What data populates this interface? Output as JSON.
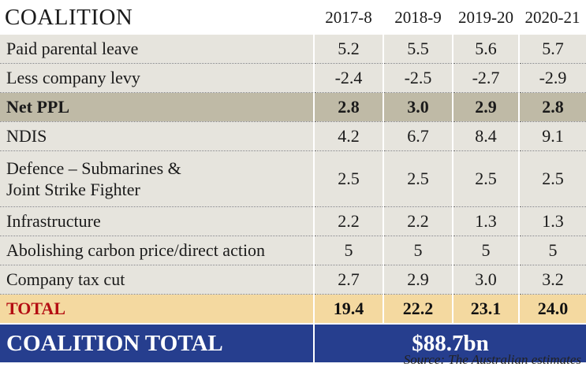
{
  "table": {
    "title": "COALITION",
    "columns": [
      "2017-8",
      "2018-9",
      "2019-20",
      "2020-21"
    ],
    "rows": [
      {
        "label": "Paid parental leave",
        "values": [
          "5.2",
          "5.5",
          "5.6",
          "5.7"
        ]
      },
      {
        "label": "Less company levy",
        "values": [
          "-2.4",
          "-2.5",
          "-2.7",
          "-2.9"
        ]
      },
      {
        "label": "Net PPL",
        "values": [
          "2.8",
          "3.0",
          "2.9",
          "2.8"
        ]
      },
      {
        "label": "NDIS",
        "values": [
          "4.2",
          "6.7",
          "8.4",
          "9.1"
        ]
      },
      {
        "label_line1": "Defence – Submarines &",
        "label_line2": "Joint Strike Fighter",
        "values": [
          "2.5",
          "2.5",
          "2.5",
          "2.5"
        ]
      },
      {
        "label": "Infrastructure",
        "values": [
          "2.2",
          "2.2",
          "1.3",
          "1.3"
        ]
      },
      {
        "label": "Abolishing carbon price/direct action",
        "values": [
          "5",
          "5",
          "5",
          "5"
        ]
      },
      {
        "label": "Company tax cut",
        "values": [
          "2.7",
          "2.9",
          "3.0",
          "3.2"
        ]
      },
      {
        "label": "TOTAL",
        "values": [
          "19.4",
          "22.2",
          "23.1",
          "24.0"
        ]
      }
    ],
    "grand_total": {
      "label": "COALITION TOTAL",
      "value": "$88.7bn"
    },
    "source": "Source:  The Australian estimates"
  },
  "colors": {
    "row_bg": "#e6e4dd",
    "highlight_row_bg": "#bfbaa6",
    "total_row_bg": "#f4d9a0",
    "total_label_color": "#b40d12",
    "grand_total_bg": "#263e8e"
  }
}
